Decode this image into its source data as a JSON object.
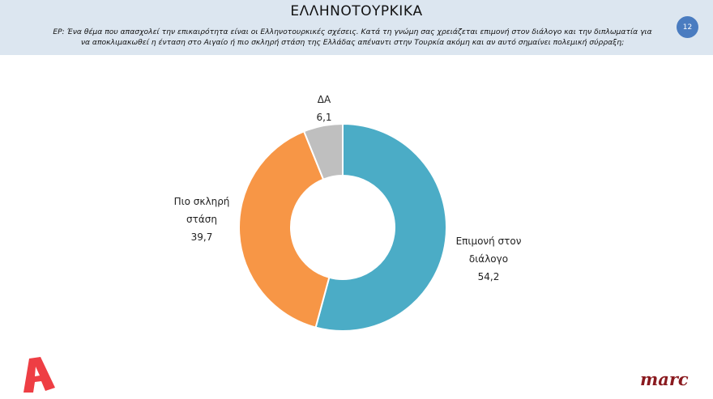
{
  "header": {
    "title": "ΕΛΛΗΝΟΤΟΥΡΚΙΚΑ",
    "question_line1": "ΕΡ: Ένα θέμα που απασχολεί την επικαιρότητα είναι οι Ελληνοτουρκικές σχέσεις. Κατά τη γνώμη σας χρειάζεται επιμονή στον διάλογο και την διπλωματία για",
    "question_line2": "να αποκλιμακωθεί η ένταση στο Αιγαίο ή πιο σκληρή στάση της Ελλάδας απέναντι στην Τουρκία ακόμη και αν αυτό σημαίνει πολεμική σύρραξη;",
    "page_number": "12"
  },
  "labels": {
    "da": {
      "name": "ΔΑ",
      "value": "6,1"
    },
    "harsher": {
      "name_line1": "Πιο σκληρή",
      "name_line2": "στάση",
      "value": "39,7"
    },
    "dialogue": {
      "name_line1": "Επιμονή στον",
      "name_line2": "διάλογο",
      "value": "54,2"
    }
  },
  "footer": {
    "left_logo": "A",
    "right_logo": "marc"
  },
  "chart_data": {
    "type": "pie",
    "subtype": "donut",
    "title": "ΕΛΛΗΝΟΤΟΥΡΚΙΚΑ",
    "categories": [
      "Επιμονή στον διάλογο",
      "Πιο σκληρή στάση",
      "ΔΑ"
    ],
    "values": [
      54.2,
      39.7,
      6.1
    ],
    "colors": [
      "#4bacc6",
      "#f79646",
      "#bfbfbf"
    ],
    "start_angle": "12 o'clock, clockwise",
    "legend": "none (data labels outside)"
  }
}
